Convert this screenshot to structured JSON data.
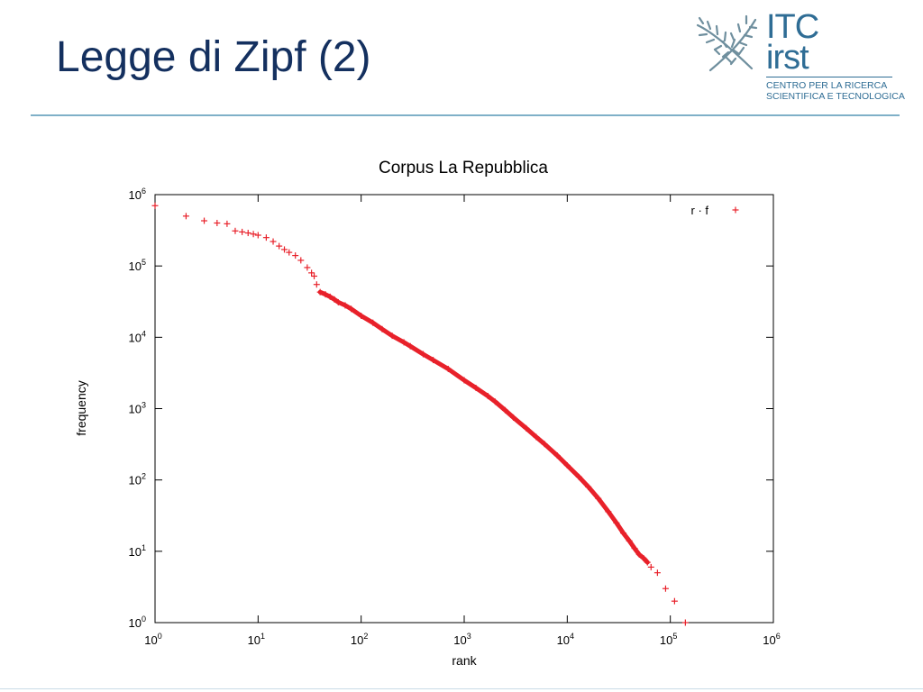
{
  "slide": {
    "title": "Legge di Zipf (2)"
  },
  "logo": {
    "line1": "ITC",
    "line2": "irst",
    "tagline1": "CENTRO PER LA RICERCA",
    "tagline2": "SCIENTIFICA E TECNOLOGICA",
    "color": "#2f6d95"
  },
  "colors": {
    "title": "#14305f",
    "rule": "#7fb0c8",
    "series": "#e8212a"
  },
  "chart_data": {
    "type": "scatter",
    "title": "Corpus La Repubblica",
    "xlabel": "rank",
    "ylabel": "frequency",
    "xscale": "log",
    "yscale": "log",
    "xlim": [
      1,
      1000000
    ],
    "ylim": [
      1,
      1000000
    ],
    "x_ticks": [
      {
        "base": "10",
        "exp": "0"
      },
      {
        "base": "10",
        "exp": "1"
      },
      {
        "base": "10",
        "exp": "2"
      },
      {
        "base": "10",
        "exp": "3"
      },
      {
        "base": "10",
        "exp": "4"
      },
      {
        "base": "10",
        "exp": "5"
      },
      {
        "base": "10",
        "exp": "6"
      }
    ],
    "y_ticks": [
      {
        "base": "10",
        "exp": "0"
      },
      {
        "base": "10",
        "exp": "1"
      },
      {
        "base": "10",
        "exp": "2"
      },
      {
        "base": "10",
        "exp": "3"
      },
      {
        "base": "10",
        "exp": "4"
      },
      {
        "base": "10",
        "exp": "5"
      },
      {
        "base": "10",
        "exp": "6"
      }
    ],
    "grid": false,
    "legend": {
      "position": "top-right"
    },
    "series": [
      {
        "name": "r · f",
        "color": "#e8212a",
        "marker": "plus",
        "points": [
          [
            1,
            700000
          ],
          [
            2,
            500000
          ],
          [
            3,
            430000
          ],
          [
            4,
            400000
          ],
          [
            5,
            390000
          ],
          [
            6,
            310000
          ],
          [
            7,
            300000
          ],
          [
            8,
            290000
          ],
          [
            9,
            280000
          ],
          [
            10,
            270000
          ],
          [
            12,
            250000
          ],
          [
            14,
            220000
          ],
          [
            16,
            190000
          ],
          [
            18,
            170000
          ],
          [
            20,
            155000
          ],
          [
            23,
            140000
          ],
          [
            26,
            120000
          ],
          [
            30,
            95000
          ],
          [
            33,
            80000
          ],
          [
            35,
            72000
          ],
          [
            37,
            55000
          ],
          [
            40,
            43000
          ],
          [
            45,
            40000
          ],
          [
            50,
            37000
          ],
          [
            55,
            34000
          ],
          [
            60,
            31000
          ],
          [
            70,
            28000
          ],
          [
            80,
            25000
          ],
          [
            100,
            20000
          ],
          [
            130,
            16000
          ],
          [
            160,
            13000
          ],
          [
            200,
            10500
          ],
          [
            260,
            8500
          ],
          [
            300,
            7500
          ],
          [
            400,
            5800
          ],
          [
            500,
            4800
          ],
          [
            700,
            3600
          ],
          [
            1000,
            2500
          ],
          [
            1300,
            1950
          ],
          [
            1700,
            1500
          ],
          [
            2000,
            1250
          ],
          [
            2500,
            950
          ],
          [
            3000,
            750
          ],
          [
            4000,
            530
          ],
          [
            5000,
            400
          ],
          [
            6000,
            320
          ],
          [
            8000,
            220
          ],
          [
            10000,
            160
          ],
          [
            13000,
            110
          ],
          [
            16000,
            80
          ],
          [
            20000,
            55
          ],
          [
            25000,
            36
          ],
          [
            30000,
            25
          ],
          [
            35000,
            18
          ],
          [
            40000,
            14
          ],
          [
            45000,
            11
          ],
          [
            50000,
            9
          ],
          [
            55000,
            8
          ],
          [
            60000,
            7
          ],
          [
            65000,
            6
          ],
          [
            75000,
            5
          ],
          [
            90000,
            3
          ],
          [
            110000,
            2
          ],
          [
            140000,
            1
          ]
        ]
      }
    ]
  }
}
